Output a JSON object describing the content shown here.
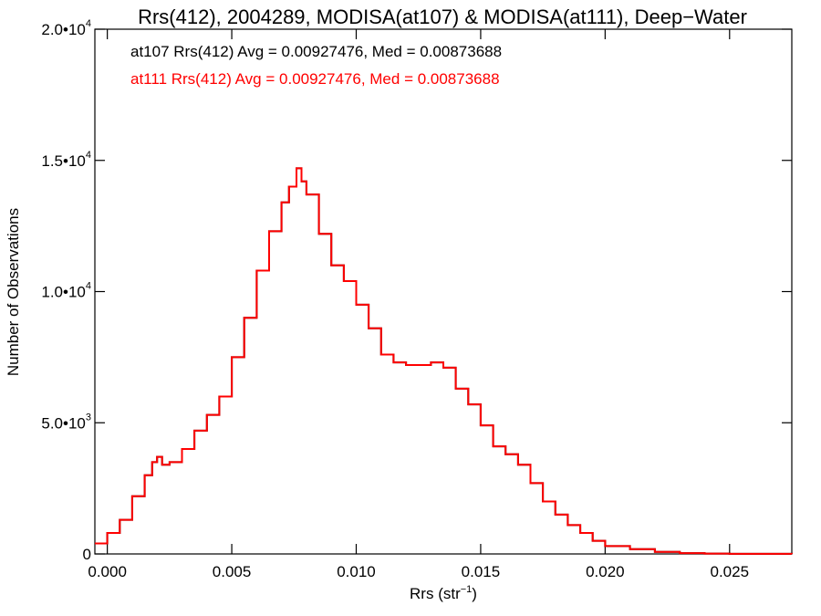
{
  "chart_data": {
    "type": "line",
    "style": "step histogram",
    "title": "Rrs(412), 2004289, MODISA(at107) & MODISA(at111), Deep−Water",
    "xlabel": "Rrs (str",
    "xlabel_sup": "−1",
    "xlabel_close": ")",
    "ylabel": "Number of Observations",
    "xlim": [
      -0.0005,
      0.0275
    ],
    "ylim": [
      0,
      20000
    ],
    "x_ticks": [
      {
        "value": 0.0,
        "label": "0.000"
      },
      {
        "value": 0.005,
        "label": "0.005"
      },
      {
        "value": 0.01,
        "label": "0.010"
      },
      {
        "value": 0.015,
        "label": "0.015"
      },
      {
        "value": 0.02,
        "label": "0.020"
      },
      {
        "value": 0.025,
        "label": "0.025"
      }
    ],
    "y_ticks": [
      {
        "value": 0,
        "base": "0",
        "exp": ""
      },
      {
        "value": 5000,
        "base": "5.0•10",
        "exp": "3"
      },
      {
        "value": 10000,
        "base": "1.0•10",
        "exp": "4"
      },
      {
        "value": 15000,
        "base": "1.5•10",
        "exp": "4"
      },
      {
        "value": 20000,
        "base": "2.0•10",
        "exp": "4"
      }
    ],
    "annotations": [
      {
        "text": "at107 Rrs(412) Avg = 0.00927476, Med = 0.00873688",
        "color": "#000000"
      },
      {
        "text": "at111 Rrs(412) Avg = 0.00927476, Med = 0.00873688",
        "color": "#ff0000"
      }
    ],
    "series": [
      {
        "name": "at107",
        "color": "#000000",
        "x": [
          -0.0005,
          0.0,
          0.0005,
          0.001,
          0.0015,
          0.0018,
          0.002,
          0.0022,
          0.0025,
          0.003,
          0.0035,
          0.004,
          0.0045,
          0.005,
          0.0055,
          0.006,
          0.0065,
          0.007,
          0.0073,
          0.0076,
          0.0078,
          0.008,
          0.0085,
          0.009,
          0.0095,
          0.01,
          0.0105,
          0.011,
          0.0115,
          0.012,
          0.0125,
          0.013,
          0.0135,
          0.014,
          0.0145,
          0.015,
          0.0155,
          0.016,
          0.0165,
          0.017,
          0.0175,
          0.018,
          0.0185,
          0.019,
          0.0195,
          0.02,
          0.021,
          0.022,
          0.023,
          0.024,
          0.025,
          0.026,
          0.0275
        ],
        "y": [
          400,
          800,
          1300,
          2200,
          3000,
          3500,
          3700,
          3400,
          3500,
          4000,
          4700,
          5300,
          6000,
          7500,
          9000,
          10800,
          12300,
          13400,
          14000,
          14700,
          14200,
          13700,
          12200,
          11000,
          10400,
          9500,
          8600,
          7600,
          7300,
          7200,
          7200,
          7300,
          7100,
          6300,
          5700,
          4900,
          4100,
          3800,
          3400,
          2700,
          2000,
          1500,
          1100,
          800,
          500,
          300,
          180,
          80,
          30,
          15,
          5,
          2,
          0
        ]
      },
      {
        "name": "at111",
        "color": "#ff0000",
        "x": [
          -0.0005,
          0.0,
          0.0005,
          0.001,
          0.0015,
          0.0018,
          0.002,
          0.0022,
          0.0025,
          0.003,
          0.0035,
          0.004,
          0.0045,
          0.005,
          0.0055,
          0.006,
          0.0065,
          0.007,
          0.0073,
          0.0076,
          0.0078,
          0.008,
          0.0085,
          0.009,
          0.0095,
          0.01,
          0.0105,
          0.011,
          0.0115,
          0.012,
          0.0125,
          0.013,
          0.0135,
          0.014,
          0.0145,
          0.015,
          0.0155,
          0.016,
          0.0165,
          0.017,
          0.0175,
          0.018,
          0.0185,
          0.019,
          0.0195,
          0.02,
          0.021,
          0.022,
          0.023,
          0.024,
          0.025,
          0.026,
          0.0275
        ],
        "y": [
          400,
          800,
          1300,
          2200,
          3000,
          3500,
          3700,
          3400,
          3500,
          4000,
          4700,
          5300,
          6000,
          7500,
          9000,
          10800,
          12300,
          13400,
          14000,
          14700,
          14200,
          13700,
          12200,
          11000,
          10400,
          9500,
          8600,
          7600,
          7300,
          7200,
          7200,
          7300,
          7100,
          6300,
          5700,
          4900,
          4100,
          3800,
          3400,
          2700,
          2000,
          1500,
          1100,
          800,
          500,
          300,
          180,
          80,
          30,
          15,
          5,
          2,
          0
        ]
      }
    ]
  }
}
